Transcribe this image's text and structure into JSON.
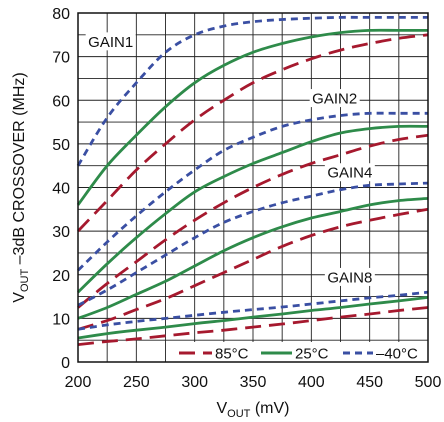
{
  "chart_data": {
    "type": "line",
    "xlabel": {
      "main": "V",
      "sub": "OUT",
      "rest": " (mV)"
    },
    "ylabel": {
      "main": "V",
      "sub": "OUT",
      "rest": " –3dB CROSSOVER (MHz)"
    },
    "xlim": [
      200,
      500
    ],
    "ylim": [
      0,
      80
    ],
    "xticks": [
      200,
      250,
      300,
      350,
      400,
      450,
      500
    ],
    "yticks": [
      0,
      10,
      20,
      30,
      40,
      50,
      60,
      70,
      80
    ],
    "grid": true,
    "legend_position": "bottom-right",
    "legend": [
      {
        "key": "85",
        "label": "85°C"
      },
      {
        "key": "25",
        "label": "25°C"
      },
      {
        "key": "m40",
        "label": "–40°C"
      }
    ],
    "styles": {
      "85": {
        "color": "#a6192e",
        "dash": "16 8"
      },
      "25": {
        "color": "#2e8b4a",
        "dash": ""
      },
      "m40": {
        "color": "#3a4fa3",
        "dash": "7 5"
      }
    },
    "annotations": [
      {
        "text": "GAIN1",
        "x": 228,
        "y": 73.5
      },
      {
        "text": "GAIN2",
        "x": 420,
        "y": 60.5
      },
      {
        "text": "GAIN4",
        "x": 433,
        "y": 43.5
      },
      {
        "text": "GAIN8",
        "x": 433,
        "y": 19.5
      }
    ],
    "x": [
      200,
      225,
      250,
      275,
      300,
      325,
      350,
      375,
      400,
      425,
      450,
      475,
      500
    ],
    "series": [
      {
        "group": "GAIN1",
        "temp": "m40",
        "values": [
          45,
          56,
          64,
          71,
          75,
          77,
          78,
          78.5,
          78.8,
          79,
          79,
          79,
          79
        ]
      },
      {
        "group": "GAIN1",
        "temp": "25",
        "values": [
          36,
          45,
          52,
          58.5,
          64,
          68,
          71,
          73,
          74.5,
          75.5,
          76,
          76,
          76
        ]
      },
      {
        "group": "GAIN1",
        "temp": "85",
        "values": [
          30,
          37,
          44,
          50,
          55.5,
          60,
          64,
          67,
          69.5,
          71.5,
          73,
          74.2,
          75
        ]
      },
      {
        "group": "GAIN2",
        "temp": "m40",
        "values": [
          21,
          27.5,
          33.5,
          39,
          44,
          48.5,
          51.5,
          54,
          55.5,
          56.5,
          57,
          57,
          57
        ]
      },
      {
        "group": "GAIN2",
        "temp": "25",
        "values": [
          16,
          22.5,
          28.5,
          34,
          39,
          42.5,
          45.5,
          48,
          50.5,
          52.5,
          53.5,
          54,
          54
        ]
      },
      {
        "group": "GAIN2",
        "temp": "85",
        "values": [
          12.5,
          18,
          23,
          28,
          32.5,
          36.5,
          40,
          43,
          45.5,
          47.5,
          49.5,
          51,
          52
        ]
      },
      {
        "group": "GAIN4",
        "temp": "m40",
        "values": [
          13,
          16.5,
          20.5,
          24.5,
          28.5,
          32,
          34.5,
          36.5,
          38,
          39.5,
          40.5,
          40.8,
          41
        ]
      },
      {
        "group": "GAIN4",
        "temp": "25",
        "values": [
          10,
          12.5,
          15.5,
          18.5,
          22,
          25.5,
          28.5,
          31,
          33,
          34.5,
          36,
          37,
          37.5
        ]
      },
      {
        "group": "GAIN4",
        "temp": "85",
        "values": [
          7.5,
          9.5,
          12,
          14.5,
          17.5,
          20.5,
          23.5,
          26.5,
          29,
          31,
          32.5,
          33.8,
          35
        ]
      },
      {
        "group": "GAIN8",
        "temp": "m40",
        "values": [
          7.5,
          8.5,
          9.3,
          10,
          10.7,
          11.4,
          12,
          12.6,
          13.3,
          14,
          14.7,
          15.3,
          16
        ]
      },
      {
        "group": "GAIN8",
        "temp": "25",
        "values": [
          5.5,
          6.5,
          7.3,
          8,
          8.8,
          9.5,
          10.3,
          11,
          11.8,
          12.5,
          13.3,
          14,
          14.8
        ]
      },
      {
        "group": "GAIN8",
        "temp": "85",
        "values": [
          4,
          4.7,
          5.3,
          6,
          6.7,
          7.3,
          8,
          8.7,
          9.5,
          10.3,
          11,
          11.8,
          12.5
        ]
      }
    ]
  }
}
